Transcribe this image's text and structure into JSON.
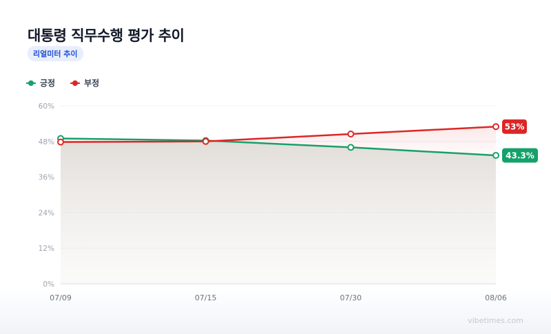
{
  "title": "대통령 직무수행 평가 추이",
  "badge": "리얼미터 추이",
  "watermark": "vibetimes.com",
  "chart_data": {
    "type": "line",
    "x": [
      "07/09",
      "07/15",
      "07/30",
      "08/06"
    ],
    "series": [
      {
        "name": "긍정",
        "color": "#16a06a",
        "values": [
          49.0,
          48.3,
          46.0,
          43.3
        ]
      },
      {
        "name": "부정",
        "color": "#dc2626",
        "values": [
          47.8,
          48.0,
          50.5,
          53.0
        ]
      }
    ],
    "end_labels": [
      "43.3%",
      "53%"
    ],
    "ylim": [
      0,
      60
    ],
    "yticks": [
      "0%",
      "12%",
      "24%",
      "36%",
      "48%",
      "60%"
    ],
    "ytick_values": [
      0,
      12,
      24,
      36,
      48,
      60
    ],
    "legend": "top-left",
    "grid": true
  }
}
